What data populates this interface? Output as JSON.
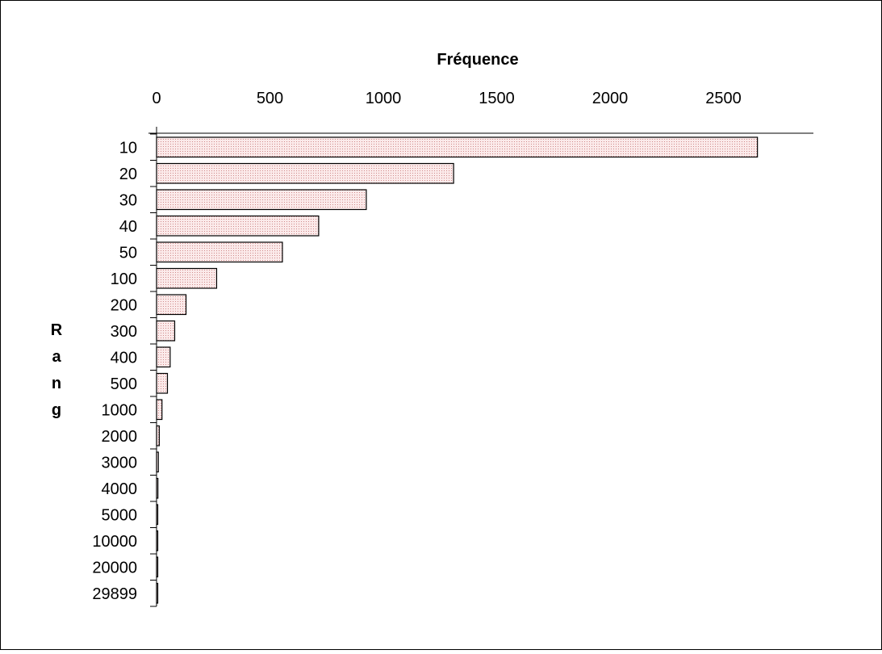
{
  "chart_data": {
    "type": "bar",
    "orientation": "horizontal",
    "xlabel": "Fréquence",
    "ylabel": "Rang",
    "xlim": [
      0,
      2900
    ],
    "xticks": [
      0,
      500,
      1000,
      1500,
      2000,
      2500
    ],
    "xaxis_position": "top",
    "grid": false,
    "legend": "none",
    "categories": [
      "10",
      "20",
      "30",
      "40",
      "50",
      "100",
      "200",
      "300",
      "400",
      "500",
      "1000",
      "2000",
      "3000",
      "4000",
      "5000",
      "10000",
      "20000",
      "29899"
    ],
    "values": [
      2650,
      1310,
      925,
      715,
      555,
      265,
      130,
      80,
      60,
      48,
      24,
      12,
      8,
      6,
      5,
      3,
      2,
      1
    ],
    "bar_fill": "#fbeaea",
    "bar_dot_color": "#d08a8a",
    "bar_stroke": "#000000"
  }
}
